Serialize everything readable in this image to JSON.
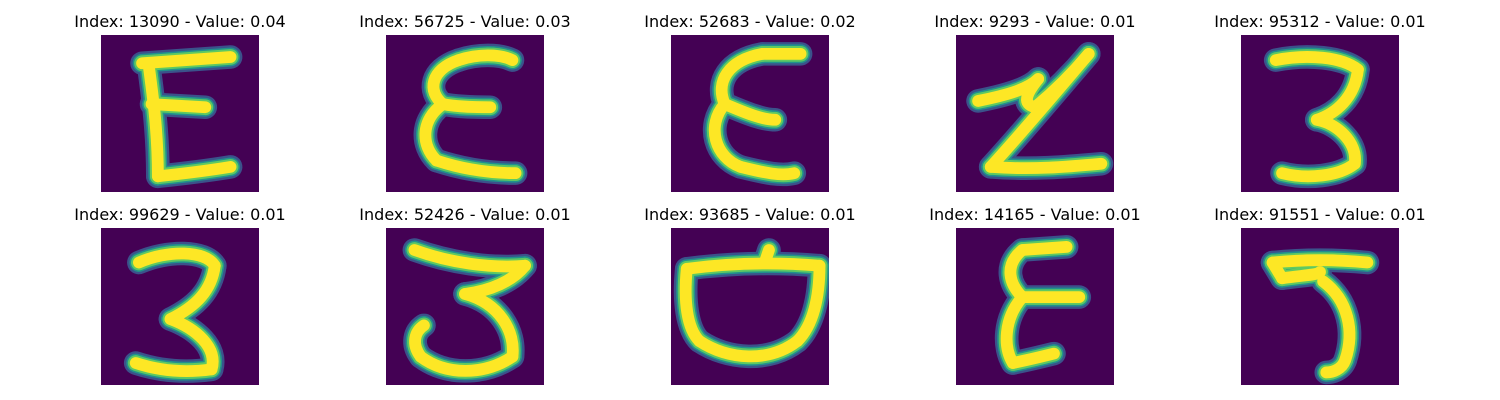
{
  "figure": {
    "background_color": "#ffffff",
    "image_background_color": "#440154",
    "stroke_colors": [
      "#fde725",
      "#5ec962",
      "#21918c",
      "#3b528b"
    ],
    "panels": [
      {
        "title": "Index: 13090 - Value: 0.04",
        "depicts": "E"
      },
      {
        "title": "Index: 56725 - Value: 0.03",
        "depicts": "E"
      },
      {
        "title": "Index: 52683 - Value: 0.02",
        "depicts": "E"
      },
      {
        "title": "Index: 9293 - Value: 0.01",
        "depicts": "Z"
      },
      {
        "title": "Index: 95312 - Value: 0.01",
        "depicts": "3"
      },
      {
        "title": "Index: 99629 - Value: 0.01",
        "depicts": "3"
      },
      {
        "title": "Index: 52426 - Value: 0.01",
        "depicts": "3"
      },
      {
        "title": "Index: 93685 - Value: 0.01",
        "depicts": "D"
      },
      {
        "title": "Index: 14165 - Value: 0.01",
        "depicts": "E"
      },
      {
        "title": "Index: 91551 - Value: 0.01",
        "depicts": "5"
      }
    ]
  }
}
